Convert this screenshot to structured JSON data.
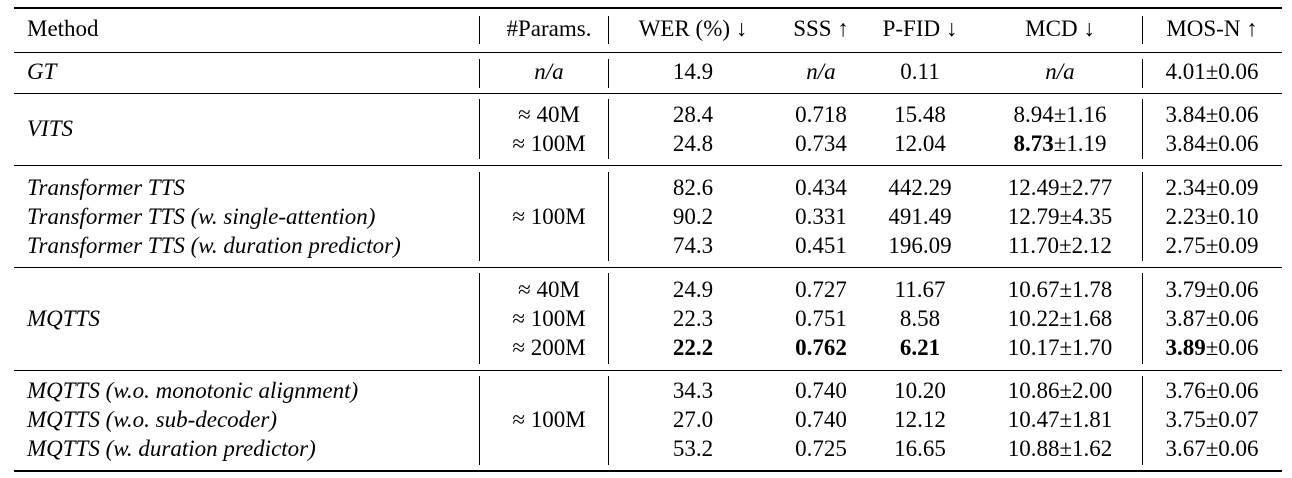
{
  "headers": {
    "method": "Method",
    "params": "#Params.",
    "wer": "WER (%) ↓",
    "sss": "SSS ↑",
    "pfid": "P-FID ↓",
    "mcd": "MCD ↓",
    "mos": "MOS-N ↑"
  },
  "groups": {
    "gt": {
      "method": "GT",
      "params": "n/a",
      "rows": [
        {
          "wer": "14.9",
          "sss": "n/a",
          "pfid": "0.11",
          "mcd": "n/a",
          "mos": "4.01±0.06"
        }
      ]
    },
    "vits": {
      "method": "VITS",
      "rows": [
        {
          "params": "≈ 40M",
          "wer": "28.4",
          "sss": "0.718",
          "pfid": "15.48",
          "mcd": "8.94±1.16",
          "mos": "3.84±0.06"
        },
        {
          "params": "≈ 100M",
          "wer": "24.8",
          "sss": "0.734",
          "pfid": "12.04",
          "mcd_bold": "8.73",
          "mcd_rest": "±1.19",
          "mos": "3.84±0.06"
        }
      ]
    },
    "transformer": {
      "params": "≈ 100M",
      "rows": [
        {
          "method": "Transformer TTS",
          "wer": "82.6",
          "sss": "0.434",
          "pfid": "442.29",
          "mcd": "12.49±2.77",
          "mos": "2.34±0.09"
        },
        {
          "method": "Transformer TTS (w. single-attention)",
          "wer": "90.2",
          "sss": "0.331",
          "pfid": "491.49",
          "mcd": "12.79±4.35",
          "mos": "2.23±0.10"
        },
        {
          "method": "Transformer TTS (w. duration predictor)",
          "wer": "74.3",
          "sss": "0.451",
          "pfid": "196.09",
          "mcd": "11.70±2.12",
          "mos": "2.75±0.09"
        }
      ]
    },
    "mqtts": {
      "method": "MQTTS",
      "rows": [
        {
          "params": "≈ 40M",
          "wer": "24.9",
          "sss": "0.727",
          "pfid": "11.67",
          "mcd": "10.67±1.78",
          "mos": "3.79±0.06"
        },
        {
          "params": "≈ 100M",
          "wer": "22.3",
          "sss": "0.751",
          "pfid": "8.58",
          "mcd": "10.22±1.68",
          "mos": "3.87±0.06"
        },
        {
          "params": "≈ 200M",
          "wer": "22.2",
          "sss": "0.762",
          "pfid": "6.21",
          "mcd": "10.17±1.70",
          "mos_bold": "3.89",
          "mos_rest": "±0.06"
        }
      ]
    },
    "ablation": {
      "params": "≈ 100M",
      "rows": [
        {
          "method": "MQTTS (w.o. monotonic alignment)",
          "wer": "34.3",
          "sss": "0.740",
          "pfid": "10.20",
          "mcd": "10.86±2.00",
          "mos": "3.76±0.06"
        },
        {
          "method": "MQTTS (w.o. sub-decoder)",
          "wer": "27.0",
          "sss": "0.740",
          "pfid": "12.12",
          "mcd": "10.47±1.81",
          "mos": "3.75±0.07"
        },
        {
          "method": "MQTTS (w. duration predictor)",
          "wer": "53.2",
          "sss": "0.725",
          "pfid": "16.65",
          "mcd": "10.88±1.62",
          "mos": "3.67±0.06"
        }
      ]
    }
  }
}
